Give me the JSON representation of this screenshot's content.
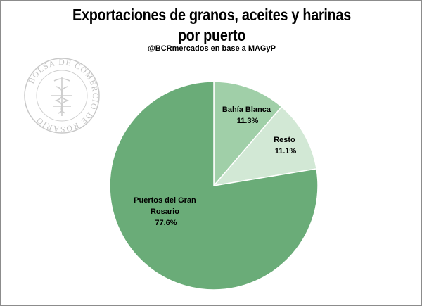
{
  "title": "Exportaciones de granos, aceites y harinas por puerto",
  "subtitle": "@BCRmercados en base a MAGyP",
  "watermark": {
    "text": "BOLSA DE COMERCIO DE ROSARIO",
    "icon": "caduceus-seal-icon"
  },
  "chart_data": {
    "type": "pie",
    "title": "Exportaciones de granos, aceites y harinas por puerto",
    "subtitle": "@BCRmercados en base a MAGyP",
    "slices": [
      {
        "label": "Bahía Blanca",
        "value": 11.3,
        "value_label": "11.3%",
        "color": "#a0cfa8"
      },
      {
        "label": "Resto",
        "value": 11.1,
        "value_label": "11.1%",
        "color": "#d2e8d5"
      },
      {
        "label": "Puertos del Gran Rosario",
        "value": 77.6,
        "value_label": "77.6%",
        "color": "#6aac78"
      }
    ],
    "start_angle": "12 o'clock",
    "direction": "clockwise",
    "legend": "none",
    "edge_color": "#ffffff"
  }
}
